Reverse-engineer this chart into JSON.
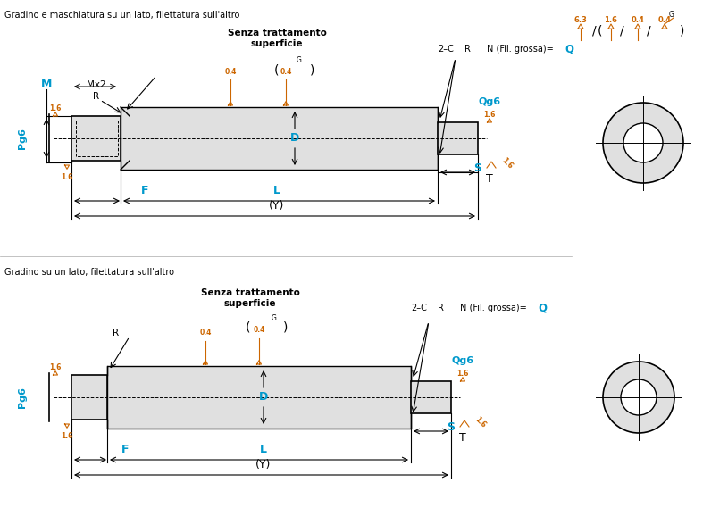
{
  "bg_color": "#ffffff",
  "line_color": "#000000",
  "cyan_color": "#0099CC",
  "orange_color": "#CC6600",
  "gray_fill": "#E0E0E0",
  "title1": "Gradino e maschiatura su un lato, filettatura sull'altro",
  "title2": "Gradino su un lato, filettatura sull'altro",
  "subtitle": "Senza trattamento\nsuperficie",
  "fig_width": 8.15,
  "fig_height": 5.78
}
